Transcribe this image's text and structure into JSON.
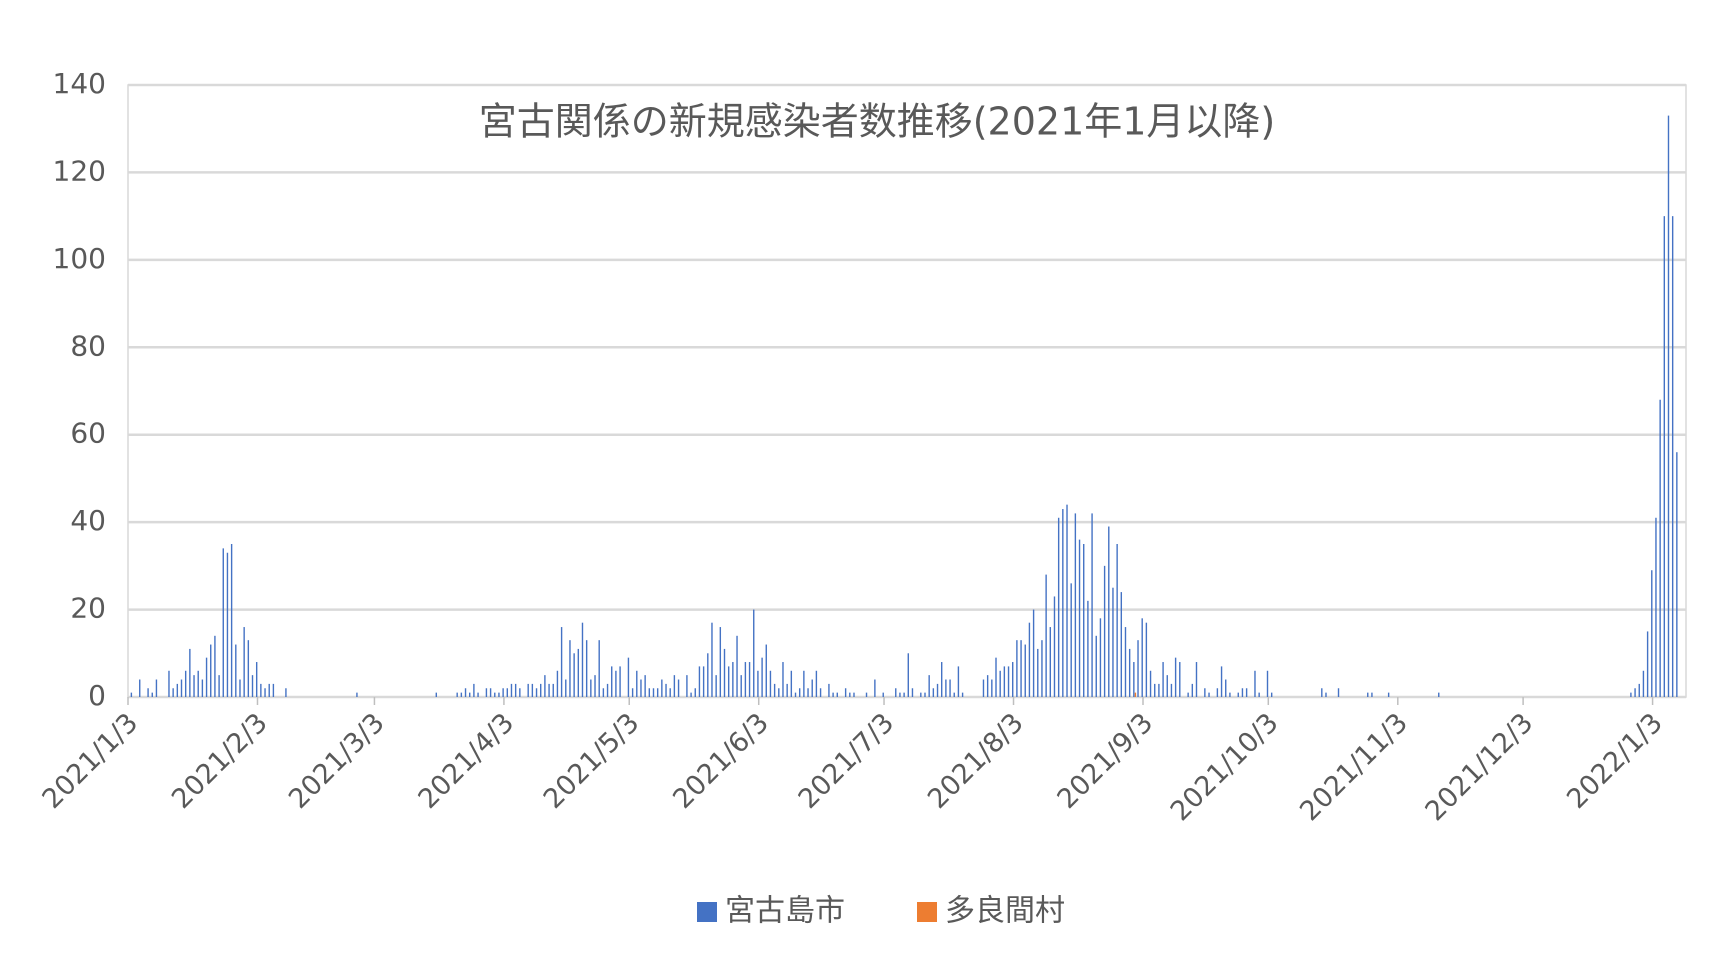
{
  "chart_data": {
    "type": "bar",
    "title": "宮古関係の新規感染者数推移(2021年1月以降)",
    "x": [
      "2021/1/4",
      "2021/1/6",
      "2021/1/8",
      "2021/1/9",
      "2021/1/10",
      "2021/1/13",
      "2021/1/14",
      "2021/1/15",
      "2021/1/16",
      "2021/1/17",
      "2021/1/18",
      "2021/1/19",
      "2021/1/20",
      "2021/1/21",
      "2021/1/22",
      "2021/1/23",
      "2021/1/24",
      "2021/1/25",
      "2021/1/26",
      "2021/1/27",
      "2021/1/28",
      "2021/1/29",
      "2021/1/30",
      "2021/1/31",
      "2021/2/1",
      "2021/2/2",
      "2021/2/3",
      "2021/2/4",
      "2021/2/5",
      "2021/2/6",
      "2021/2/7",
      "2021/2/10",
      "2021/2/27",
      "2021/3/18",
      "2021/3/23",
      "2021/3/24",
      "2021/3/25",
      "2021/3/26",
      "2021/3/27",
      "2021/3/28",
      "2021/3/30",
      "2021/3/31",
      "2021/4/1",
      "2021/4/2",
      "2021/4/3",
      "2021/4/4",
      "2021/4/5",
      "2021/4/6",
      "2021/4/7",
      "2021/4/9",
      "2021/4/10",
      "2021/4/11",
      "2021/4/12",
      "2021/4/13",
      "2021/4/14",
      "2021/4/15",
      "2021/4/16",
      "2021/4/17",
      "2021/4/18",
      "2021/4/19",
      "2021/4/20",
      "2021/4/21",
      "2021/4/22",
      "2021/4/23",
      "2021/4/24",
      "2021/4/25",
      "2021/4/26",
      "2021/4/27",
      "2021/4/28",
      "2021/4/29",
      "2021/4/30",
      "2021/5/1",
      "2021/5/3",
      "2021/5/4",
      "2021/5/5",
      "2021/5/6",
      "2021/5/7",
      "2021/5/8",
      "2021/5/9",
      "2021/5/10",
      "2021/5/11",
      "2021/5/12",
      "2021/5/13",
      "2021/5/14",
      "2021/5/15",
      "2021/5/17",
      "2021/5/18",
      "2021/5/19",
      "2021/5/20",
      "2021/5/21",
      "2021/5/22",
      "2021/5/23",
      "2021/5/24",
      "2021/5/25",
      "2021/5/26",
      "2021/5/27",
      "2021/5/28",
      "2021/5/29",
      "2021/5/30",
      "2021/5/31",
      "2021/6/1",
      "2021/6/2",
      "2021/6/3",
      "2021/6/4",
      "2021/6/5",
      "2021/6/6",
      "2021/6/7",
      "2021/6/8",
      "2021/6/9",
      "2021/6/10",
      "2021/6/11",
      "2021/6/12",
      "2021/6/13",
      "2021/6/14",
      "2021/6/15",
      "2021/6/16",
      "2021/6/17",
      "2021/6/18",
      "2021/6/20",
      "2021/6/21",
      "2021/6/22",
      "2021/6/24",
      "2021/6/25",
      "2021/6/26",
      "2021/6/29",
      "2021/7/1",
      "2021/7/3",
      "2021/7/6",
      "2021/7/7",
      "2021/7/8",
      "2021/7/9",
      "2021/7/10",
      "2021/7/12",
      "2021/7/13",
      "2021/7/14",
      "2021/7/15",
      "2021/7/16",
      "2021/7/17",
      "2021/7/18",
      "2021/7/19",
      "2021/7/20",
      "2021/7/21",
      "2021/7/22",
      "2021/7/27",
      "2021/7/28",
      "2021/7/29",
      "2021/7/30",
      "2021/7/31",
      "2021/8/1",
      "2021/8/2",
      "2021/8/3",
      "2021/8/4",
      "2021/8/5",
      "2021/8/6",
      "2021/8/7",
      "2021/8/8",
      "2021/8/9",
      "2021/8/10",
      "2021/8/11",
      "2021/8/12",
      "2021/8/13",
      "2021/8/14",
      "2021/8/15",
      "2021/8/16",
      "2021/8/17",
      "2021/8/18",
      "2021/8/19",
      "2021/8/20",
      "2021/8/21",
      "2021/8/22",
      "2021/8/23",
      "2021/8/24",
      "2021/8/25",
      "2021/8/26",
      "2021/8/27",
      "2021/8/28",
      "2021/8/29",
      "2021/8/30",
      "2021/8/31",
      "2021/9/1",
      "2021/9/2",
      "2021/9/3",
      "2021/9/4",
      "2021/9/5",
      "2021/9/6",
      "2021/9/7",
      "2021/9/8",
      "2021/9/9",
      "2021/9/10",
      "2021/9/11",
      "2021/9/12",
      "2021/9/14",
      "2021/9/15",
      "2021/9/16",
      "2021/9/18",
      "2021/9/19",
      "2021/9/21",
      "2021/9/22",
      "2021/9/23",
      "2021/9/24",
      "2021/9/26",
      "2021/9/27",
      "2021/9/28",
      "2021/9/30",
      "2021/10/1",
      "2021/10/3",
      "2021/10/4",
      "2021/10/16",
      "2021/10/17",
      "2021/10/20",
      "2021/10/27",
      "2021/10/28",
      "2021/11/1",
      "2021/11/13",
      "2021/12/29",
      "2021/12/30",
      "2021/12/31",
      "2022/1/1",
      "2022/1/2",
      "2022/1/3",
      "2022/1/4",
      "2022/1/5",
      "2022/1/6",
      "2022/1/7",
      "2022/1/8",
      "2022/1/9"
    ],
    "series": [
      {
        "name": "宮古島市",
        "color": "#4472c4",
        "values": [
          1,
          4,
          2,
          1,
          4,
          6,
          2,
          3,
          4,
          6,
          11,
          5,
          6,
          4,
          9,
          12,
          14,
          5,
          34,
          33,
          35,
          12,
          4,
          16,
          13,
          5,
          8,
          3,
          2,
          3,
          3,
          2,
          1,
          1,
          1,
          1,
          2,
          1,
          3,
          1,
          2,
          2,
          1,
          1,
          2,
          2,
          3,
          3,
          2,
          3,
          3,
          2,
          3,
          5,
          3,
          3,
          6,
          16,
          4,
          13,
          10,
          11,
          17,
          13,
          4,
          5,
          13,
          2,
          3,
          7,
          6,
          7,
          9,
          2,
          6,
          4,
          5,
          2,
          2,
          2,
          4,
          3,
          2,
          5,
          4,
          5,
          1,
          2,
          7,
          7,
          10,
          17,
          5,
          16,
          11,
          7,
          8,
          14,
          5,
          8,
          8,
          20,
          6,
          9,
          12,
          6,
          3,
          2,
          8,
          3,
          6,
          1,
          2,
          6,
          2,
          4,
          6,
          2,
          3,
          1,
          1,
          2,
          1,
          1,
          1,
          4,
          1,
          2,
          1,
          1,
          10,
          2,
          1,
          1,
          5,
          2,
          3,
          8,
          4,
          4,
          1,
          7,
          1,
          4,
          5,
          4,
          9,
          6,
          7,
          7,
          8,
          13,
          13,
          12,
          17,
          20,
          11,
          13,
          28,
          16,
          23,
          41,
          43,
          44,
          26,
          42,
          36,
          35,
          22,
          42,
          14,
          18,
          30,
          39,
          25,
          35,
          24,
          16,
          11,
          8,
          13,
          18,
          17,
          6,
          3,
          3,
          8,
          5,
          3,
          9,
          8,
          1,
          3,
          8,
          2,
          1,
          2,
          7,
          4,
          1,
          1,
          2,
          2,
          6,
          1,
          6,
          1,
          2,
          1,
          2,
          1,
          1,
          1,
          1,
          1,
          2,
          3,
          6,
          15,
          29,
          41,
          68,
          110,
          133,
          110,
          56
        ]
      },
      {
        "name": "多良間村",
        "color": "#ed7d31",
        "values": [
          0,
          0,
          0,
          0,
          0,
          0,
          0,
          0,
          0,
          0,
          0,
          0,
          0,
          0,
          0,
          0,
          0,
          0,
          0,
          0,
          0,
          0,
          0,
          0,
          0,
          0,
          0,
          0,
          0,
          0,
          0,
          0,
          0,
          0,
          0,
          0,
          0,
          0,
          0,
          0,
          0,
          0,
          0,
          0,
          0,
          0,
          0,
          0,
          0,
          0,
          0,
          0,
          0,
          0,
          0,
          0,
          0,
          0,
          0,
          0,
          0,
          0,
          0,
          0,
          0,
          0,
          0,
          0,
          0,
          0,
          0,
          0,
          0,
          0,
          0,
          0,
          0,
          0,
          0,
          0,
          0,
          0,
          0,
          0,
          0,
          0,
          0,
          0,
          0,
          0,
          0,
          0,
          0,
          0,
          0,
          0,
          0,
          0,
          0,
          0,
          0,
          0,
          0,
          0,
          0,
          0,
          0,
          0,
          0,
          0,
          0,
          0,
          0,
          0,
          0,
          0,
          0,
          0,
          0,
          0,
          0,
          0,
          0,
          0,
          0,
          0,
          0,
          0,
          0,
          0,
          0,
          0,
          0,
          0,
          0,
          0,
          0,
          0,
          0,
          0,
          0,
          0,
          0,
          0,
          0,
          0,
          0,
          0,
          0,
          0,
          0,
          0,
          0,
          0,
          0,
          0,
          0,
          0,
          0,
          0,
          0,
          0,
          0,
          0,
          0,
          0,
          0,
          0,
          0,
          0,
          0,
          0,
          0,
          0,
          0,
          0,
          0,
          0,
          0,
          1,
          0,
          0,
          0,
          0,
          0,
          0,
          0,
          0,
          0,
          0,
          0,
          0,
          0,
          0,
          0,
          0,
          0,
          0,
          0,
          0,
          0,
          0,
          0,
          0,
          0,
          0,
          0,
          0,
          0,
          0,
          0,
          0,
          0,
          0,
          0,
          0,
          0,
          0,
          0,
          0,
          0,
          0,
          0,
          0,
          0,
          0
        ]
      }
    ],
    "xlim": [
      "2021/1/3",
      "2022/1/11"
    ],
    "xticks": [
      "2021/1/3",
      "2021/2/3",
      "2021/3/3",
      "2021/4/3",
      "2021/5/3",
      "2021/6/3",
      "2021/7/3",
      "2021/8/3",
      "2021/9/3",
      "2021/10/3",
      "2021/11/3",
      "2021/12/3",
      "2022/1/3"
    ],
    "ylim": [
      0,
      140
    ],
    "yticks": [
      0,
      20,
      40,
      60,
      80,
      100,
      120,
      140
    ],
    "grid": true,
    "legend": "bottom"
  }
}
